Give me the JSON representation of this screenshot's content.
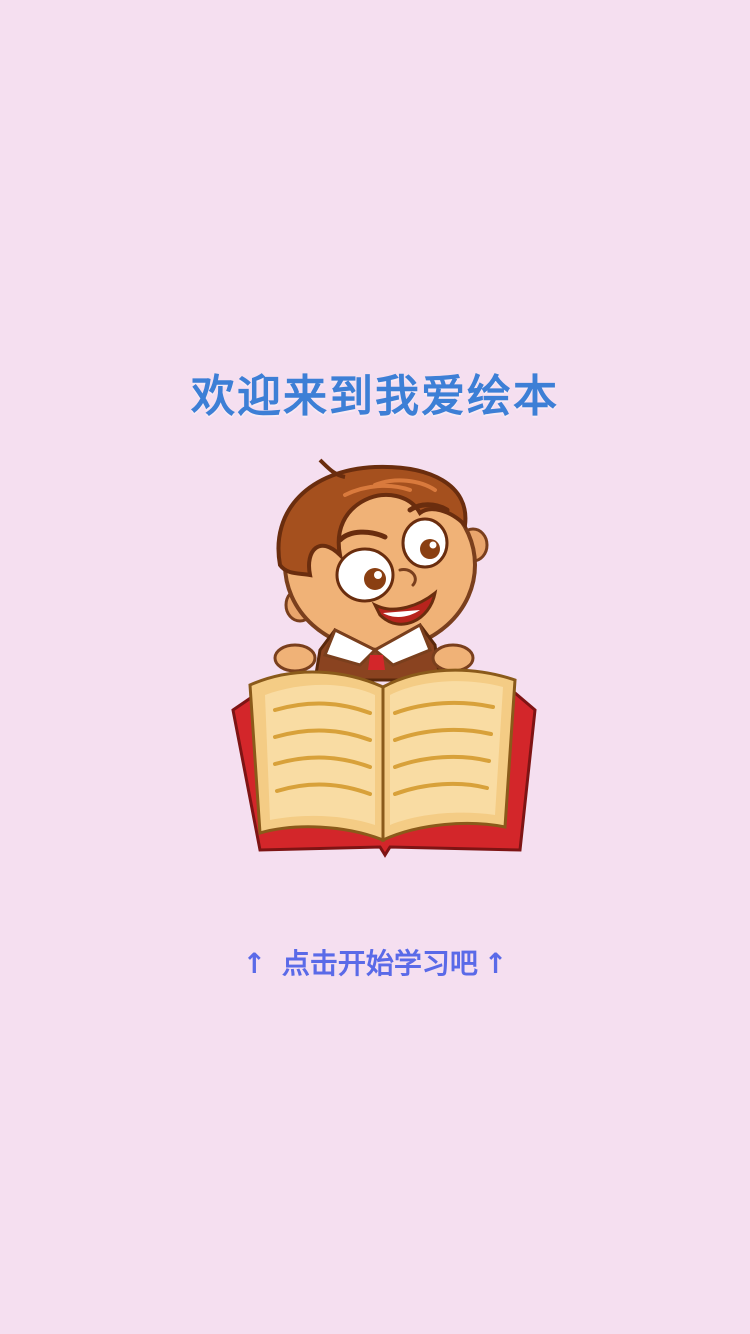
{
  "welcome": {
    "title": "欢迎来到我爱绘本"
  },
  "illustration": {
    "icon": "boy-reading-book-illustration"
  },
  "start": {
    "arrow_left": "↑",
    "label": "点击开始学习吧",
    "arrow_right": "↑"
  },
  "colors": {
    "background": "#f5dff0",
    "title": "#3d7fd6",
    "hint": "#5a6ae8"
  }
}
